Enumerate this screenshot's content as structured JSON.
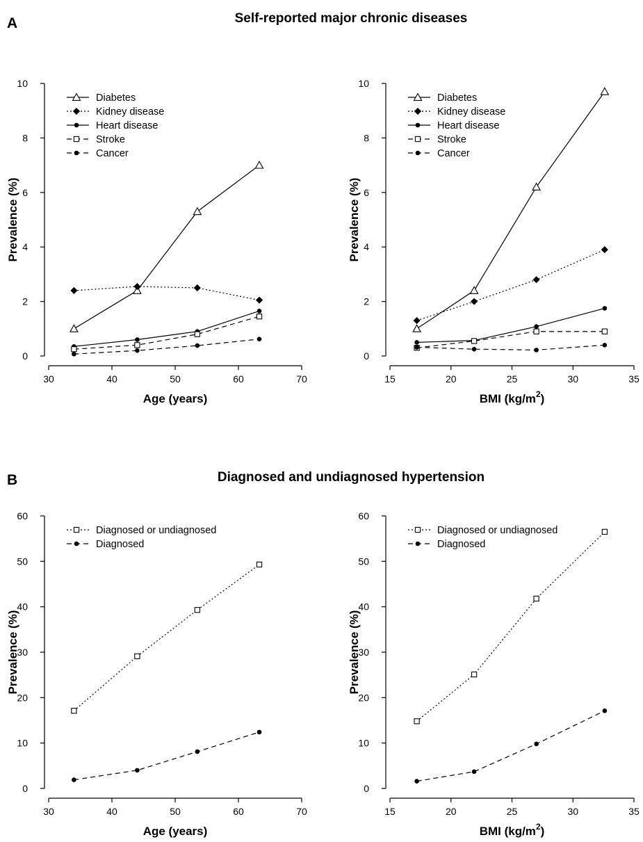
{
  "panels": [
    {
      "letter": "A",
      "title": "Self-reported major chronic diseases"
    },
    {
      "letter": "B",
      "title": "Diagnosed and undiagnosed hypertension"
    }
  ],
  "chart_data": [
    {
      "type": "line",
      "panel": "A",
      "xlabel": "Age (years)",
      "ylabel": "Prevalence (%)",
      "xlim": [
        30,
        70
      ],
      "ylim": [
        0,
        10
      ],
      "xticks": [
        30,
        40,
        50,
        60,
        70
      ],
      "yticks": [
        0,
        2,
        4,
        6,
        8,
        10
      ],
      "legend_position": "top-left",
      "grid": false,
      "series": [
        {
          "name": "Diabetes",
          "x": [
            34,
            44,
            53.5,
            63.3
          ],
          "values": [
            1.0,
            2.4,
            5.3,
            7.0
          ],
          "line": "solid",
          "marker": "open-triangle"
        },
        {
          "name": "Kidney disease",
          "x": [
            34,
            44,
            53.5,
            63.3
          ],
          "values": [
            2.4,
            2.55,
            2.5,
            2.05
          ],
          "line": "dotted",
          "marker": "filled-diamond"
        },
        {
          "name": "Heart disease",
          "x": [
            34,
            44,
            53.5,
            63.3
          ],
          "values": [
            0.35,
            0.6,
            0.9,
            1.65
          ],
          "line": "solid",
          "marker": "filled-circle"
        },
        {
          "name": "Stroke",
          "x": [
            34,
            44,
            53.5,
            63.3
          ],
          "values": [
            0.25,
            0.4,
            0.8,
            1.45
          ],
          "line": "dashed",
          "marker": "open-square"
        },
        {
          "name": "Cancer",
          "x": [
            34,
            44,
            53.5,
            63.3
          ],
          "values": [
            0.07,
            0.2,
            0.38,
            0.62
          ],
          "line": "dashed",
          "marker": "filled-circle"
        }
      ]
    },
    {
      "type": "line",
      "panel": "A",
      "xlabel": "BMI (kg/m",
      "xlabel_sup": "2",
      "xlabel_end": ")",
      "ylabel": "Prevalence (%)",
      "xlim": [
        15,
        35
      ],
      "ylim": [
        0,
        10
      ],
      "xticks": [
        15,
        20,
        25,
        30,
        35
      ],
      "yticks": [
        0,
        2,
        4,
        6,
        8,
        10
      ],
      "legend_position": "top-left",
      "grid": false,
      "series": [
        {
          "name": "Diabetes",
          "x": [
            17.2,
            21.9,
            27,
            32.6
          ],
          "values": [
            1.0,
            2.4,
            6.2,
            9.7
          ],
          "line": "solid",
          "marker": "open-triangle"
        },
        {
          "name": "Kidney disease",
          "x": [
            17.2,
            21.9,
            27,
            32.6
          ],
          "values": [
            1.3,
            2.0,
            2.8,
            3.9
          ],
          "line": "dotted",
          "marker": "filled-diamond"
        },
        {
          "name": "Heart disease",
          "x": [
            17.2,
            21.9,
            27,
            32.6
          ],
          "values": [
            0.5,
            0.57,
            1.08,
            1.75
          ],
          "line": "solid",
          "marker": "filled-circle"
        },
        {
          "name": "Stroke",
          "x": [
            17.2,
            21.9,
            27,
            32.6
          ],
          "values": [
            0.3,
            0.55,
            0.9,
            0.9
          ],
          "line": "dashed",
          "marker": "open-square"
        },
        {
          "name": "Cancer",
          "x": [
            17.2,
            21.9,
            27,
            32.6
          ],
          "values": [
            0.32,
            0.25,
            0.22,
            0.4
          ],
          "line": "dashed",
          "marker": "filled-circle"
        }
      ]
    },
    {
      "type": "line",
      "panel": "B",
      "xlabel": "Age (years)",
      "ylabel": "Prevalence (%)",
      "xlim": [
        30,
        70
      ],
      "ylim": [
        0,
        60
      ],
      "xticks": [
        30,
        40,
        50,
        60,
        70
      ],
      "yticks": [
        0,
        10,
        20,
        30,
        40,
        50,
        60
      ],
      "legend_position": "top-left",
      "grid": false,
      "series": [
        {
          "name": "Diagnosed or undiagnosed",
          "x": [
            34,
            44,
            53.5,
            63.3
          ],
          "values": [
            17.1,
            29.1,
            39.3,
            49.3
          ],
          "line": "dotted",
          "marker": "open-square"
        },
        {
          "name": "Diagnosed",
          "x": [
            34,
            44,
            53.5,
            63.3
          ],
          "values": [
            1.9,
            4.0,
            8.1,
            12.4
          ],
          "line": "dashed",
          "marker": "filled-circle"
        }
      ]
    },
    {
      "type": "line",
      "panel": "B",
      "xlabel": "BMI (kg/m",
      "xlabel_sup": "2",
      "xlabel_end": ")",
      "ylabel": "Prevalence (%)",
      "xlim": [
        15,
        35
      ],
      "ylim": [
        0,
        60
      ],
      "xticks": [
        15,
        20,
        25,
        30,
        35
      ],
      "yticks": [
        0,
        10,
        20,
        30,
        40,
        50,
        60
      ],
      "legend_position": "top-left",
      "grid": false,
      "series": [
        {
          "name": "Diagnosed or undiagnosed",
          "x": [
            17.2,
            21.9,
            27,
            32.6
          ],
          "values": [
            14.8,
            25.1,
            41.8,
            56.5
          ],
          "line": "dotted",
          "marker": "open-square"
        },
        {
          "name": "Diagnosed",
          "x": [
            17.2,
            21.9,
            27,
            32.6
          ],
          "values": [
            1.6,
            3.7,
            9.8,
            17.1
          ],
          "line": "dashed",
          "marker": "filled-circle"
        }
      ]
    }
  ]
}
